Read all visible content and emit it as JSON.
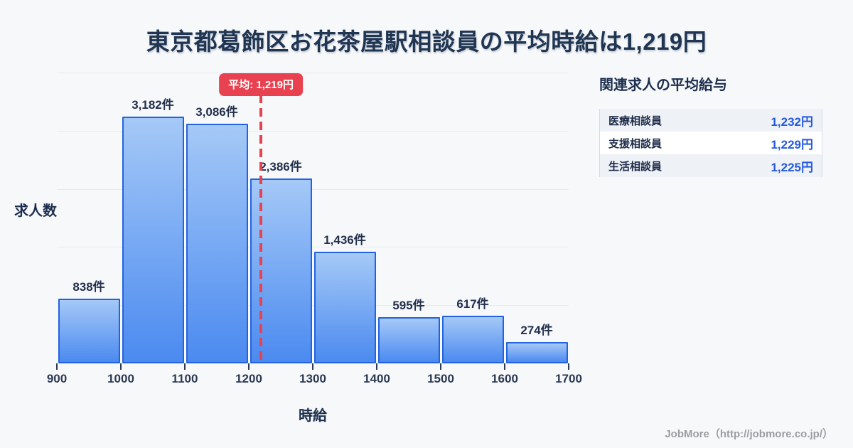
{
  "page": {
    "title": "東京都葛飾区お花茶屋駅相談員の平均時給は1,219円",
    "footer": "JobMore（http://jobmore.co.jp/）"
  },
  "chart_data": {
    "type": "bar",
    "subtype": "histogram",
    "xlabel": "時給",
    "ylabel": "求人数",
    "bin_edges": [
      900,
      1000,
      1100,
      1200,
      1300,
      1400,
      1500,
      1600,
      1700
    ],
    "x_tick_labels": [
      "900",
      "1000",
      "1100",
      "1200",
      "1300",
      "1400",
      "1500",
      "1600",
      "1700"
    ],
    "values": [
      838,
      3182,
      3086,
      2386,
      1436,
      595,
      617,
      274
    ],
    "bar_labels": [
      "838件",
      "3,182件",
      "3,086件",
      "2,386件",
      "1,436件",
      "595件",
      "617件",
      "274件"
    ],
    "ylim": [
      0,
      3750
    ],
    "grid": true,
    "gridline_count": 5,
    "average": {
      "value": 1219,
      "label": "平均: 1,219円"
    }
  },
  "side_panel": {
    "title": "関連求人の平均給与",
    "rows": [
      {
        "label": "医療相談員",
        "value": "1,232円"
      },
      {
        "label": "支援相談員",
        "value": "1,229円"
      },
      {
        "label": "生活相談員",
        "value": "1,225円"
      }
    ]
  },
  "colors": {
    "accent_red": "#e8414f",
    "bar_border": "#2463de",
    "bar_gradient_top": "#a5c9f7",
    "bar_gradient_bottom": "#4b8af0",
    "value_blue": "#2559e0",
    "title_navy": "#1f3552",
    "background": "#f7f8fa"
  }
}
